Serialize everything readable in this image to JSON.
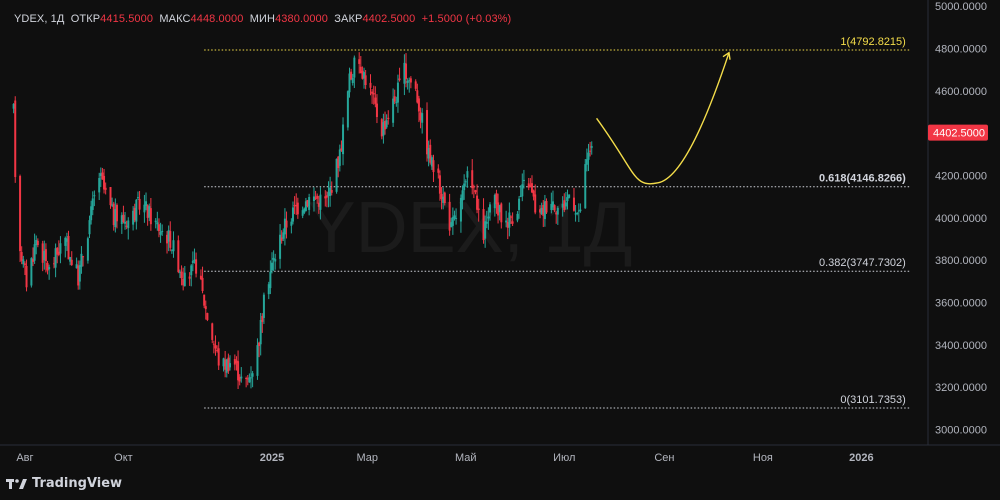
{
  "header": {
    "symbol": "YDEX, 1Д",
    "open_label": "ОТКР",
    "open_value": "4415.5000",
    "high_label": "МАКС",
    "high_value": "4448.0000",
    "low_label": "МИН",
    "low_value": "4380.0000",
    "close_label": "ЗАКР",
    "close_value": "4402.5000",
    "change": "+1.5000 (+0.03%)"
  },
  "watermark": "YDEX, 1Д",
  "footer": {
    "brand": "TradingView"
  },
  "colors": {
    "background": "#0f0f0f",
    "up": "#26a69a",
    "down": "#f23645",
    "fib_top": "#f4dd4a",
    "fib_other": "#d1d4dc",
    "arrow": "#f4dd4a",
    "price_badge": "#f23645"
  },
  "chart_data": {
    "type": "candlestick",
    "symbol": "YDEX",
    "timeframe": "1Д",
    "y_axis": {
      "ticks": [
        3000,
        3200,
        3400,
        3600,
        3800,
        4000,
        4200,
        4400,
        4600,
        4800,
        5000
      ],
      "tick_labels": [
        "3000.0000",
        "3200.0000",
        "3400.0000",
        "3600.0000",
        "3800.0000",
        "4000.0000",
        "4200.0000",
        "4400.0000",
        "4600.0000",
        "4800.0000",
        "5000.0000"
      ],
      "range": [
        2955,
        5010
      ]
    },
    "x_axis": {
      "labels": [
        "Авг",
        "Окт",
        "2025",
        "Мар",
        "Май",
        "Июл",
        "Сен",
        "Ноя",
        "2026"
      ],
      "label_dates": [
        "2024-08-01",
        "2024-10-01",
        "2025-01-01",
        "2025-03-01",
        "2025-05-01",
        "2025-07-01",
        "2025-09-01",
        "2025-11-01",
        "2026-01-01"
      ],
      "range": [
        "2024-07-24",
        "2026-02-10"
      ]
    },
    "last_price": {
      "value": 4402.5,
      "label": "4402.5000"
    },
    "fib_levels": [
      {
        "ratio_label": "1",
        "value": 4792.8215,
        "label": "1(4792.8215)",
        "highlight": true
      },
      {
        "ratio_label": "0.618",
        "value": 4146.8266,
        "label": "0.618(4146.8266)",
        "highlight": false,
        "bold": true
      },
      {
        "ratio_label": "0.382",
        "value": 3747.7302,
        "label": "0.382(3747.7302)",
        "highlight": false
      },
      {
        "ratio_label": "0",
        "value": 3101.7353,
        "label": "0(3101.7353)",
        "highlight": false
      }
    ],
    "fib_start": "2024-11-20",
    "fib_end": "2026-01-31",
    "arrow_path": [
      {
        "x": "2025-07-21",
        "y": 4470
      },
      {
        "x": "2025-08-28",
        "y": 4165
      },
      {
        "x": "2025-10-11",
        "y": 4780
      }
    ],
    "candle_path": [
      [
        "2024-07-25",
        4500
      ],
      [
        "2024-07-27",
        3950
      ],
      [
        "2024-08-02",
        3700
      ],
      [
        "2024-08-08",
        3900
      ],
      [
        "2024-08-16",
        3750
      ],
      [
        "2024-08-25",
        3900
      ],
      [
        "2024-09-03",
        3720
      ],
      [
        "2024-09-12",
        4060
      ],
      [
        "2024-09-16",
        4200
      ],
      [
        "2024-09-25",
        4000
      ],
      [
        "2024-10-05",
        3990
      ],
      [
        "2024-10-12",
        4080
      ],
      [
        "2024-10-20",
        3980
      ],
      [
        "2024-10-30",
        3900
      ],
      [
        "2024-11-08",
        3700
      ],
      [
        "2024-11-15",
        3780
      ],
      [
        "2024-11-23",
        3500
      ],
      [
        "2024-11-30",
        3300
      ],
      [
        "2024-12-08",
        3330
      ],
      [
        "2024-12-15",
        3200
      ],
      [
        "2024-12-22",
        3330
      ],
      [
        "2024-12-29",
        3700
      ],
      [
        "2025-01-08",
        3950
      ],
      [
        "2025-01-16",
        4050
      ],
      [
        "2025-01-25",
        4100
      ],
      [
        "2025-02-04",
        4080
      ],
      [
        "2025-02-12",
        4300
      ],
      [
        "2025-02-18",
        4650
      ],
      [
        "2025-02-23",
        4760
      ],
      [
        "2025-03-02",
        4620
      ],
      [
        "2025-03-10",
        4420
      ],
      [
        "2025-03-18",
        4560
      ],
      [
        "2025-03-24",
        4690
      ],
      [
        "2025-03-31",
        4610
      ],
      [
        "2025-04-08",
        4300
      ],
      [
        "2025-04-15",
        4150
      ],
      [
        "2025-04-22",
        3950
      ],
      [
        "2025-04-27",
        4050
      ],
      [
        "2025-05-04",
        4230
      ],
      [
        "2025-05-11",
        3900
      ],
      [
        "2025-05-18",
        4080
      ],
      [
        "2025-05-25",
        3980
      ],
      [
        "2025-06-01",
        4030
      ],
      [
        "2025-06-08",
        4200
      ],
      [
        "2025-06-15",
        3990
      ],
      [
        "2025-06-22",
        4100
      ],
      [
        "2025-06-29",
        4030
      ],
      [
        "2025-07-05",
        4130
      ],
      [
        "2025-07-10",
        4000
      ],
      [
        "2025-07-14",
        4220
      ],
      [
        "2025-07-19",
        4402.5
      ]
    ]
  }
}
